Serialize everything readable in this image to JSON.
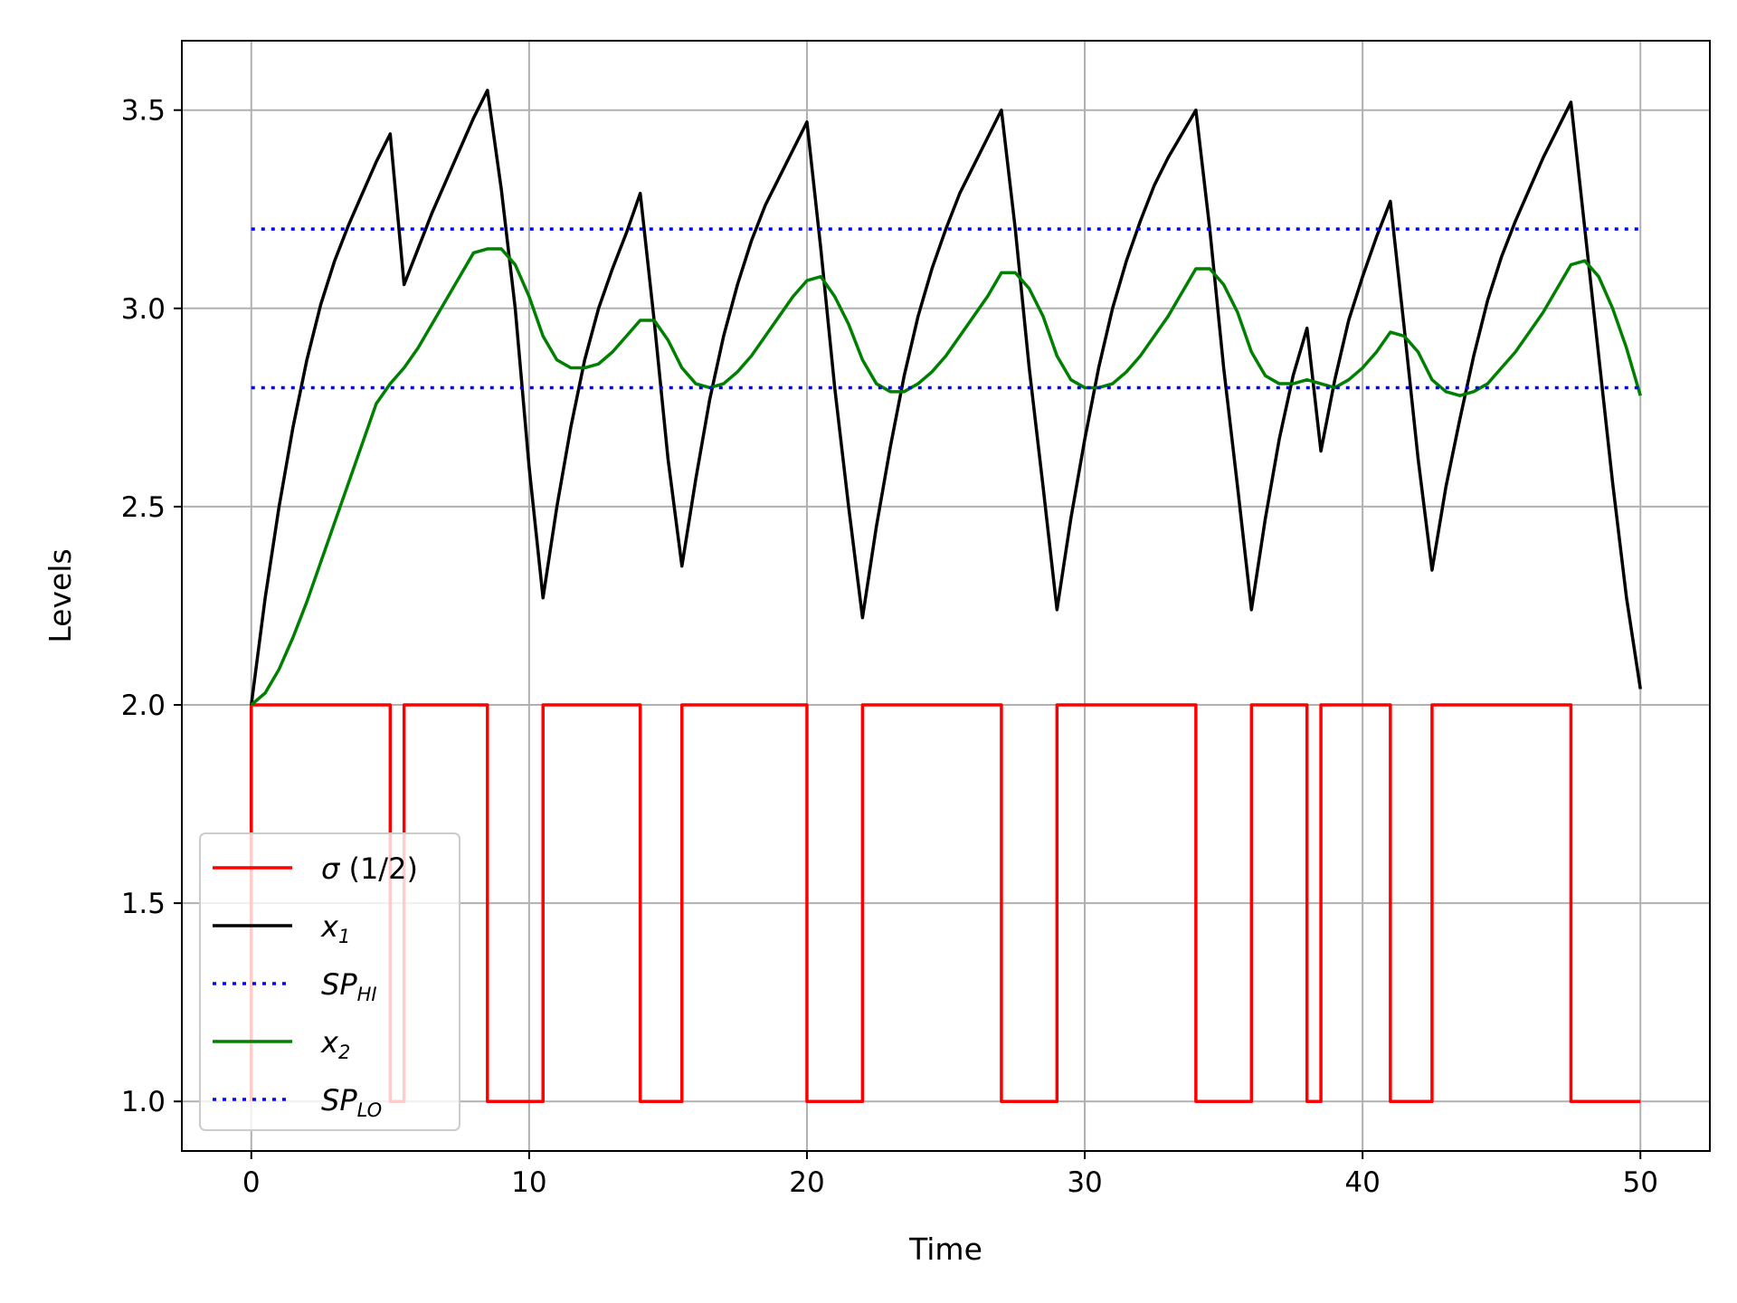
{
  "chart_data": {
    "type": "line",
    "xlabel": "Time",
    "ylabel": "Levels",
    "xlim": [
      -2.5,
      52.5
    ],
    "ylim": [
      0.875,
      3.675
    ],
    "xticks": [
      0,
      10,
      20,
      30,
      40,
      50
    ],
    "xtick_labels": [
      "0",
      "10",
      "20",
      "30",
      "40",
      "50"
    ],
    "yticks": [
      1.0,
      1.5,
      2.0,
      2.5,
      3.0,
      3.5
    ],
    "ytick_labels": [
      "1.0",
      "1.5",
      "2.0",
      "2.5",
      "3.0",
      "3.5"
    ],
    "grid": true,
    "legend_position": "lower-left",
    "legend": [
      {
        "key": "sigma",
        "base": "σ",
        "sub": "",
        "suffix": " (1/2)",
        "style": "solid",
        "color": "#ff0000"
      },
      {
        "key": "x1",
        "base": "x",
        "sub": "1",
        "suffix": "",
        "style": "solid",
        "color": "#000000"
      },
      {
        "key": "sp_hi",
        "base": "SP",
        "sub": "HI",
        "suffix": "",
        "style": "dotted",
        "color": "#0000ff"
      },
      {
        "key": "x2",
        "base": "x",
        "sub": "2",
        "suffix": "",
        "style": "solid",
        "color": "#008000"
      },
      {
        "key": "sp_lo",
        "base": "SP",
        "sub": "LO",
        "suffix": "",
        "style": "dotted",
        "color": "#0000ff"
      }
    ],
    "series": [
      {
        "key": "sigma",
        "color": "#ff0000",
        "style": "step",
        "points": [
          [
            0,
            1
          ],
          [
            0,
            2
          ],
          [
            5,
            2
          ],
          [
            5,
            1
          ],
          [
            5.5,
            1
          ],
          [
            5.5,
            2
          ],
          [
            8.5,
            2
          ],
          [
            8.5,
            1
          ],
          [
            10.5,
            1
          ],
          [
            10.5,
            2
          ],
          [
            14,
            2
          ],
          [
            14,
            1
          ],
          [
            15.5,
            1
          ],
          [
            15.5,
            2
          ],
          [
            20,
            2
          ],
          [
            20,
            1
          ],
          [
            22,
            1
          ],
          [
            22,
            2
          ],
          [
            27,
            2
          ],
          [
            27,
            1
          ],
          [
            29,
            1
          ],
          [
            29,
            2
          ],
          [
            34,
            2
          ],
          [
            34,
            1
          ],
          [
            36,
            1
          ],
          [
            36,
            2
          ],
          [
            38,
            2
          ],
          [
            38,
            1
          ],
          [
            38.5,
            1
          ],
          [
            38.5,
            2
          ],
          [
            41,
            2
          ],
          [
            41,
            1
          ],
          [
            42.5,
            1
          ],
          [
            42.5,
            2
          ],
          [
            47.5,
            2
          ],
          [
            47.5,
            1
          ],
          [
            50,
            1
          ]
        ]
      },
      {
        "key": "x1",
        "color": "#000000",
        "style": "solid",
        "points": [
          [
            0,
            2
          ],
          [
            0.5,
            2.27
          ],
          [
            1,
            2.5
          ],
          [
            1.5,
            2.7
          ],
          [
            2,
            2.87
          ],
          [
            2.5,
            3.01
          ],
          [
            3,
            3.12
          ],
          [
            3.5,
            3.21
          ],
          [
            4,
            3.29
          ],
          [
            4.5,
            3.37
          ],
          [
            5,
            3.44
          ],
          [
            5.5,
            3.06
          ],
          [
            6,
            3.15
          ],
          [
            6.5,
            3.24
          ],
          [
            7,
            3.32
          ],
          [
            7.5,
            3.4
          ],
          [
            8,
            3.48
          ],
          [
            8.5,
            3.55
          ],
          [
            9,
            3.3
          ],
          [
            9.5,
            3.0
          ],
          [
            10,
            2.6
          ],
          [
            10.5,
            2.27
          ],
          [
            11,
            2.5
          ],
          [
            11.5,
            2.7
          ],
          [
            12,
            2.87
          ],
          [
            12.5,
            3.0
          ],
          [
            13,
            3.1
          ],
          [
            13.5,
            3.19
          ],
          [
            14,
            3.29
          ],
          [
            14.5,
            2.97
          ],
          [
            15,
            2.62
          ],
          [
            15.5,
            2.35
          ],
          [
            16,
            2.57
          ],
          [
            16.5,
            2.77
          ],
          [
            17,
            2.93
          ],
          [
            17.5,
            3.06
          ],
          [
            18,
            3.17
          ],
          [
            18.5,
            3.26
          ],
          [
            19,
            3.33
          ],
          [
            19.5,
            3.4
          ],
          [
            20,
            3.47
          ],
          [
            20.5,
            3.15
          ],
          [
            21,
            2.8
          ],
          [
            21.5,
            2.5
          ],
          [
            22,
            2.22
          ],
          [
            22.5,
            2.45
          ],
          [
            23,
            2.65
          ],
          [
            23.5,
            2.83
          ],
          [
            24,
            2.98
          ],
          [
            24.5,
            3.1
          ],
          [
            25,
            3.2
          ],
          [
            25.5,
            3.29
          ],
          [
            26,
            3.36
          ],
          [
            26.5,
            3.43
          ],
          [
            27,
            3.5
          ],
          [
            27.5,
            3.2
          ],
          [
            28,
            2.85
          ],
          [
            28.5,
            2.55
          ],
          [
            29,
            2.24
          ],
          [
            29.5,
            2.47
          ],
          [
            30,
            2.67
          ],
          [
            30.5,
            2.85
          ],
          [
            31,
            3.0
          ],
          [
            31.5,
            3.12
          ],
          [
            32,
            3.22
          ],
          [
            32.5,
            3.31
          ],
          [
            33,
            3.38
          ],
          [
            33.5,
            3.44
          ],
          [
            34,
            3.5
          ],
          [
            34.5,
            3.2
          ],
          [
            35,
            2.85
          ],
          [
            35.5,
            2.55
          ],
          [
            36,
            2.24
          ],
          [
            36.5,
            2.47
          ],
          [
            37,
            2.67
          ],
          [
            37.5,
            2.83
          ],
          [
            38,
            2.95
          ],
          [
            38.5,
            2.64
          ],
          [
            39,
            2.82
          ],
          [
            39.5,
            2.97
          ],
          [
            40,
            3.08
          ],
          [
            40.5,
            3.18
          ],
          [
            41,
            3.27
          ],
          [
            41.5,
            2.95
          ],
          [
            42,
            2.62
          ],
          [
            42.5,
            2.34
          ],
          [
            43,
            2.55
          ],
          [
            43.5,
            2.72
          ],
          [
            44,
            2.88
          ],
          [
            44.5,
            3.02
          ],
          [
            45,
            3.13
          ],
          [
            45.5,
            3.22
          ],
          [
            46,
            3.3
          ],
          [
            46.5,
            3.38
          ],
          [
            47,
            3.45
          ],
          [
            47.5,
            3.52
          ],
          [
            48,
            3.2
          ],
          [
            48.5,
            2.88
          ],
          [
            49,
            2.56
          ],
          [
            49.5,
            2.27
          ],
          [
            50,
            2.04
          ]
        ]
      },
      {
        "key": "sp_hi",
        "color": "#0000ff",
        "style": "dotted",
        "points": [
          [
            0,
            3.2
          ],
          [
            50,
            3.2
          ]
        ]
      },
      {
        "key": "x2",
        "color": "#008000",
        "style": "solid",
        "points": [
          [
            0,
            2.0
          ],
          [
            0.5,
            2.03
          ],
          [
            1,
            2.09
          ],
          [
            1.5,
            2.17
          ],
          [
            2,
            2.26
          ],
          [
            2.5,
            2.36
          ],
          [
            3,
            2.46
          ],
          [
            3.5,
            2.56
          ],
          [
            4,
            2.66
          ],
          [
            4.5,
            2.76
          ],
          [
            5,
            2.81
          ],
          [
            5.5,
            2.85
          ],
          [
            6,
            2.9
          ],
          [
            6.5,
            2.96
          ],
          [
            7,
            3.02
          ],
          [
            7.5,
            3.08
          ],
          [
            8,
            3.14
          ],
          [
            8.5,
            3.15
          ],
          [
            9,
            3.15
          ],
          [
            9.5,
            3.11
          ],
          [
            10,
            3.03
          ],
          [
            10.5,
            2.93
          ],
          [
            11,
            2.87
          ],
          [
            11.5,
            2.85
          ],
          [
            12,
            2.85
          ],
          [
            12.5,
            2.86
          ],
          [
            13,
            2.89
          ],
          [
            13.5,
            2.93
          ],
          [
            14,
            2.97
          ],
          [
            14.5,
            2.97
          ],
          [
            15,
            2.92
          ],
          [
            15.5,
            2.85
          ],
          [
            16,
            2.81
          ],
          [
            16.5,
            2.8
          ],
          [
            17,
            2.81
          ],
          [
            17.5,
            2.84
          ],
          [
            18,
            2.88
          ],
          [
            18.5,
            2.93
          ],
          [
            19,
            2.98
          ],
          [
            19.5,
            3.03
          ],
          [
            20,
            3.07
          ],
          [
            20.5,
            3.08
          ],
          [
            21,
            3.03
          ],
          [
            21.5,
            2.96
          ],
          [
            22,
            2.87
          ],
          [
            22.5,
            2.81
          ],
          [
            23,
            2.79
          ],
          [
            23.5,
            2.79
          ],
          [
            24,
            2.81
          ],
          [
            24.5,
            2.84
          ],
          [
            25,
            2.88
          ],
          [
            25.5,
            2.93
          ],
          [
            26,
            2.98
          ],
          [
            26.5,
            3.03
          ],
          [
            27,
            3.09
          ],
          [
            27.5,
            3.09
          ],
          [
            28,
            3.05
          ],
          [
            28.5,
            2.98
          ],
          [
            29,
            2.88
          ],
          [
            29.5,
            2.82
          ],
          [
            30,
            2.8
          ],
          [
            30.5,
            2.8
          ],
          [
            31,
            2.81
          ],
          [
            31.5,
            2.84
          ],
          [
            32,
            2.88
          ],
          [
            32.5,
            2.93
          ],
          [
            33,
            2.98
          ],
          [
            33.5,
            3.04
          ],
          [
            34,
            3.1
          ],
          [
            34.5,
            3.1
          ],
          [
            35,
            3.06
          ],
          [
            35.5,
            2.99
          ],
          [
            36,
            2.89
          ],
          [
            36.5,
            2.83
          ],
          [
            37,
            2.81
          ],
          [
            37.5,
            2.81
          ],
          [
            38,
            2.82
          ],
          [
            38.5,
            2.81
          ],
          [
            39,
            2.8
          ],
          [
            39.5,
            2.82
          ],
          [
            40,
            2.85
          ],
          [
            40.5,
            2.89
          ],
          [
            41,
            2.94
          ],
          [
            41.5,
            2.93
          ],
          [
            42,
            2.89
          ],
          [
            42.5,
            2.82
          ],
          [
            43,
            2.79
          ],
          [
            43.5,
            2.78
          ],
          [
            44,
            2.79
          ],
          [
            44.5,
            2.81
          ],
          [
            45,
            2.85
          ],
          [
            45.5,
            2.89
          ],
          [
            46,
            2.94
          ],
          [
            46.5,
            2.99
          ],
          [
            47,
            3.05
          ],
          [
            47.5,
            3.11
          ],
          [
            48,
            3.12
          ],
          [
            48.5,
            3.08
          ],
          [
            49,
            3.0
          ],
          [
            49.5,
            2.9
          ],
          [
            50,
            2.78
          ]
        ]
      },
      {
        "key": "sp_lo",
        "color": "#0000ff",
        "style": "dotted",
        "points": [
          [
            0,
            2.8
          ],
          [
            50,
            2.8
          ]
        ]
      }
    ]
  }
}
